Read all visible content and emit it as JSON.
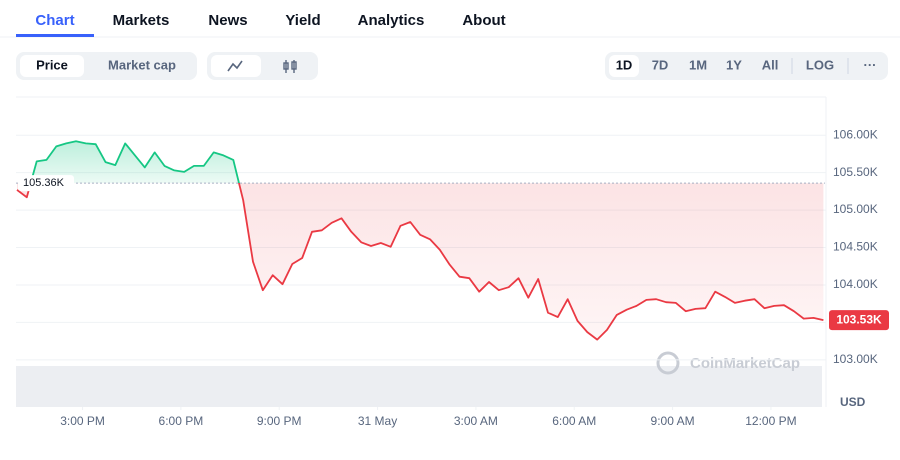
{
  "nav": {
    "tabs": [
      "Chart",
      "Markets",
      "News",
      "Yield",
      "Analytics",
      "About"
    ],
    "active": 0
  },
  "toolbar": {
    "metric": [
      "Price",
      "Market cap"
    ],
    "ranges": [
      "1D",
      "7D",
      "1M",
      "1Y",
      "All"
    ],
    "log": "LOG",
    "more": "···"
  },
  "chart_data": {
    "type": "line",
    "x": [
      13,
      13.3,
      13.6,
      13.9,
      14.2,
      14.5,
      14.8,
      15.1,
      15.4,
      15.7,
      16,
      16.3,
      16.6,
      16.9,
      17.2,
      17.5,
      17.8,
      18.1,
      18.4,
      18.7,
      19,
      19.3,
      19.6,
      19.9,
      20.2,
      20.5,
      20.8,
      21.1,
      21.4,
      21.7,
      22,
      22.3,
      22.6,
      22.9,
      23.2,
      23.5,
      23.8,
      24.1,
      24.4,
      24.7,
      25,
      25.3,
      25.6,
      25.9,
      26.2,
      26.5,
      26.8,
      27.1,
      27.4,
      27.7,
      28,
      28.3,
      28.6,
      28.9,
      29.2,
      29.5,
      29.8,
      30.1,
      30.4,
      30.7,
      31,
      31.3,
      31.6,
      31.9,
      32.2,
      32.5,
      32.8,
      33.1,
      33.4,
      33.7,
      34,
      34.3,
      34.6,
      34.9,
      35.2,
      35.5,
      35.8,
      36.1,
      36.4,
      36.7,
      37,
      37.3,
      37.6
    ],
    "values": [
      105270,
      105170,
      105650,
      105670,
      105850,
      105890,
      105920,
      105890,
      105880,
      105640,
      105600,
      105890,
      105730,
      105570,
      105770,
      105590,
      105530,
      105510,
      105590,
      105590,
      105770,
      105730,
      105670,
      105130,
      104310,
      103930,
      104130,
      104010,
      104280,
      104360,
      104710,
      104730,
      104830,
      104890,
      104710,
      104570,
      104520,
      104560,
      104510,
      104790,
      104840,
      104670,
      104610,
      104470,
      104270,
      104110,
      104090,
      103910,
      104040,
      103930,
      103970,
      104090,
      103830,
      104080,
      103630,
      103570,
      103810,
      103520,
      103370,
      103270,
      103400,
      103600,
      103670,
      103720,
      103800,
      103810,
      103770,
      103760,
      103650,
      103680,
      103690,
      103910,
      103840,
      103760,
      103790,
      103810,
      103690,
      103720,
      103730,
      103650,
      103550,
      103560,
      103530
    ],
    "up_color": "#16c784",
    "down_color": "#ea3943",
    "reference": {
      "value": 105360,
      "label": "105.36K"
    },
    "last": {
      "value": 103530,
      "label": "103.53K"
    },
    "currency": "USD",
    "watermark": "CoinMarketCap",
    "xlim": [
      12.97,
      37.65
    ],
    "xticks": [
      {
        "value": 15,
        "label": "3:00 PM"
      },
      {
        "value": 18,
        "label": "6:00 PM"
      },
      {
        "value": 21,
        "label": "9:00 PM"
      },
      {
        "value": 24,
        "label": "31 May"
      },
      {
        "value": 27,
        "label": "3:00 AM"
      },
      {
        "value": 30,
        "label": "6:00 AM"
      },
      {
        "value": 33,
        "label": "9:00 AM"
      },
      {
        "value": 36,
        "label": "12:00 PM"
      }
    ],
    "ylim": [
      102370,
      106510
    ],
    "yticks": [
      {
        "value": 103000,
        "label": "103.00K"
      },
      {
        "value": 103500,
        "label": "103.50K"
      },
      {
        "value": 104000,
        "label": "104.00K"
      },
      {
        "value": 104500,
        "label": "104.50K"
      },
      {
        "value": 105000,
        "label": "105.00K"
      },
      {
        "value": 105500,
        "label": "105.50K"
      },
      {
        "value": 106000,
        "label": "106.00K"
      }
    ],
    "grid": true
  }
}
